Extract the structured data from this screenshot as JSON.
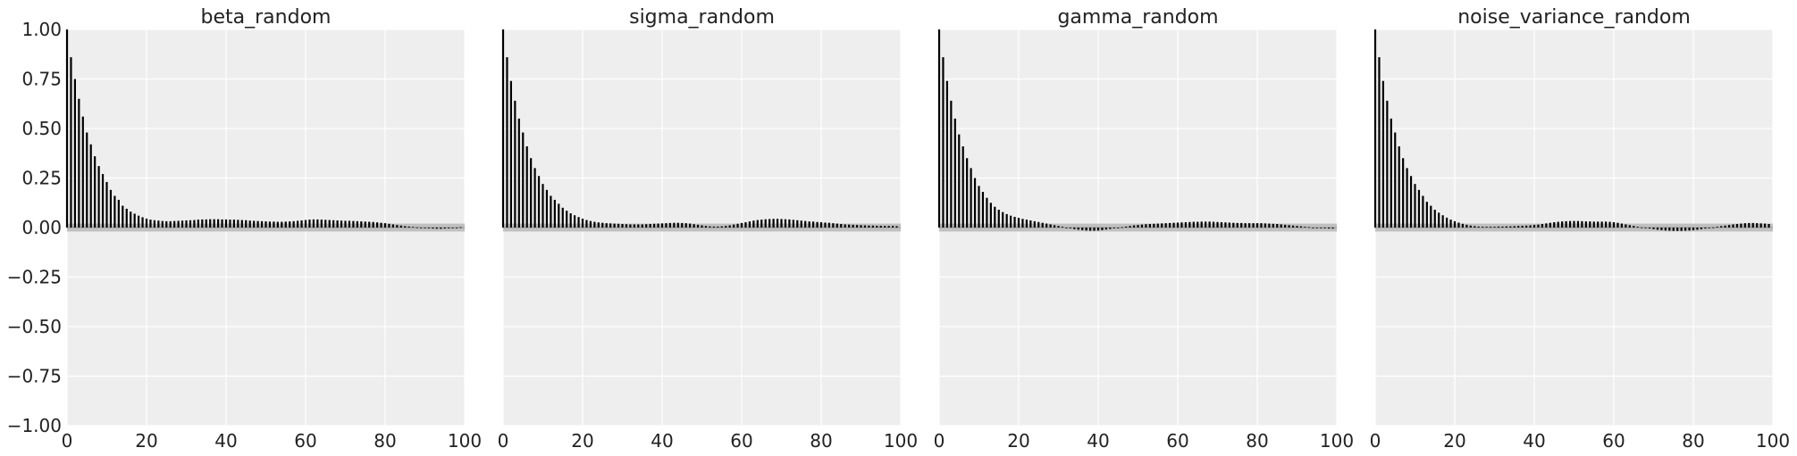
{
  "figure": {
    "background": "#ffffff",
    "panel_background": "#eeeeee",
    "grid_color": "#ffffff",
    "bar_color": "#000000",
    "band_color": "#c0c0c0"
  },
  "chart_data": [
    {
      "type": "bar",
      "title": "beta_random",
      "xlim": [
        0,
        100
      ],
      "ylim": [
        -1.0,
        1.0
      ],
      "xticks": [
        "0",
        "20",
        "40",
        "60",
        "80",
        "100"
      ],
      "yticks": [
        "1.00",
        "0.75",
        "0.50",
        "0.25",
        "0.00",
        "−0.25",
        "−0.50",
        "−0.75",
        "−1.00"
      ],
      "grid": true,
      "x": [
        0,
        1,
        2,
        3,
        4,
        5,
        6,
        7,
        8,
        9,
        10,
        11,
        12,
        13,
        14,
        15,
        16,
        17,
        18,
        19,
        20,
        21,
        22,
        23,
        24,
        25,
        26,
        27,
        28,
        29,
        30,
        31,
        32,
        33,
        34,
        35,
        36,
        37,
        38,
        39,
        40,
        41,
        42,
        43,
        44,
        45,
        46,
        47,
        48,
        49,
        50,
        51,
        52,
        53,
        54,
        55,
        56,
        57,
        58,
        59,
        60,
        61,
        62,
        63,
        64,
        65,
        66,
        67,
        68,
        69,
        70,
        71,
        72,
        73,
        74,
        75,
        76,
        77,
        78,
        79,
        80,
        81,
        82,
        83,
        84,
        85,
        86,
        87,
        88,
        89,
        90,
        91,
        92,
        93,
        94,
        95,
        96,
        97,
        98,
        99
      ],
      "values": [
        1.0,
        0.86,
        0.75,
        0.65,
        0.56,
        0.48,
        0.42,
        0.36,
        0.31,
        0.27,
        0.23,
        0.19,
        0.16,
        0.14,
        0.11,
        0.095,
        0.08,
        0.07,
        0.06,
        0.052,
        0.045,
        0.04,
        0.037,
        0.035,
        0.033,
        0.032,
        0.032,
        0.033,
        0.034,
        0.035,
        0.036,
        0.037,
        0.038,
        0.04,
        0.041,
        0.041,
        0.042,
        0.042,
        0.042,
        0.041,
        0.041,
        0.04,
        0.04,
        0.039,
        0.038,
        0.037,
        0.035,
        0.034,
        0.033,
        0.032,
        0.031,
        0.03,
        0.03,
        0.029,
        0.029,
        0.03,
        0.031,
        0.032,
        0.034,
        0.036,
        0.038,
        0.04,
        0.041,
        0.041,
        0.04,
        0.039,
        0.038,
        0.037,
        0.036,
        0.035,
        0.034,
        0.034,
        0.033,
        0.032,
        0.031,
        0.03,
        0.029,
        0.028,
        0.026,
        0.024,
        0.022,
        0.019,
        0.016,
        0.013,
        0.01,
        0.007,
        0.005,
        0.003,
        0.001,
        0.0,
        -0.003,
        -0.004,
        -0.005,
        -0.006,
        -0.006,
        -0.005,
        -0.004,
        -0.003,
        0.0,
        0.002
      ]
    },
    {
      "type": "bar",
      "title": "sigma_random",
      "xlim": [
        0,
        100
      ],
      "ylim": [
        -1.0,
        1.0
      ],
      "xticks": [
        "0",
        "20",
        "40",
        "60",
        "80",
        "100"
      ],
      "yticks": [],
      "grid": true,
      "x": [
        0,
        1,
        2,
        3,
        4,
        5,
        6,
        7,
        8,
        9,
        10,
        11,
        12,
        13,
        14,
        15,
        16,
        17,
        18,
        19,
        20,
        21,
        22,
        23,
        24,
        25,
        26,
        27,
        28,
        29,
        30,
        31,
        32,
        33,
        34,
        35,
        36,
        37,
        38,
        39,
        40,
        41,
        42,
        43,
        44,
        45,
        46,
        47,
        48,
        49,
        50,
        51,
        52,
        53,
        54,
        55,
        56,
        57,
        58,
        59,
        60,
        61,
        62,
        63,
        64,
        65,
        66,
        67,
        68,
        69,
        70,
        71,
        72,
        73,
        74,
        75,
        76,
        77,
        78,
        79,
        80,
        81,
        82,
        83,
        84,
        85,
        86,
        87,
        88,
        89,
        90,
        91,
        92,
        93,
        94,
        95,
        96,
        97,
        98,
        99
      ],
      "values": [
        1.0,
        0.86,
        0.74,
        0.64,
        0.55,
        0.48,
        0.41,
        0.35,
        0.3,
        0.26,
        0.22,
        0.19,
        0.16,
        0.14,
        0.12,
        0.1,
        0.085,
        0.072,
        0.062,
        0.053,
        0.045,
        0.038,
        0.033,
        0.029,
        0.026,
        0.024,
        0.022,
        0.021,
        0.02,
        0.019,
        0.018,
        0.017,
        0.016,
        0.016,
        0.016,
        0.016,
        0.017,
        0.018,
        0.019,
        0.02,
        0.021,
        0.022,
        0.023,
        0.024,
        0.024,
        0.023,
        0.022,
        0.02,
        0.017,
        0.014,
        0.011,
        0.008,
        0.006,
        0.005,
        0.005,
        0.006,
        0.008,
        0.011,
        0.015,
        0.019,
        0.023,
        0.027,
        0.031,
        0.035,
        0.038,
        0.04,
        0.042,
        0.043,
        0.044,
        0.044,
        0.043,
        0.042,
        0.041,
        0.039,
        0.037,
        0.035,
        0.033,
        0.031,
        0.03,
        0.028,
        0.027,
        0.025,
        0.024,
        0.022,
        0.02,
        0.018,
        0.016,
        0.015,
        0.014,
        0.013,
        0.012,
        0.011,
        0.01,
        0.01,
        0.009,
        0.009,
        0.008,
        0.008,
        0.008,
        0.007
      ]
    },
    {
      "type": "bar",
      "title": "gamma_random",
      "xlim": [
        0,
        100
      ],
      "ylim": [
        -1.0,
        1.0
      ],
      "xticks": [
        "0",
        "20",
        "40",
        "60",
        "80",
        "100"
      ],
      "yticks": [],
      "grid": true,
      "x": [
        0,
        1,
        2,
        3,
        4,
        5,
        6,
        7,
        8,
        9,
        10,
        11,
        12,
        13,
        14,
        15,
        16,
        17,
        18,
        19,
        20,
        21,
        22,
        23,
        24,
        25,
        26,
        27,
        28,
        29,
        30,
        31,
        32,
        33,
        34,
        35,
        36,
        37,
        38,
        39,
        40,
        41,
        42,
        43,
        44,
        45,
        46,
        47,
        48,
        49,
        50,
        51,
        52,
        53,
        54,
        55,
        56,
        57,
        58,
        59,
        60,
        61,
        62,
        63,
        64,
        65,
        66,
        67,
        68,
        69,
        70,
        71,
        72,
        73,
        74,
        75,
        76,
        77,
        78,
        79,
        80,
        81,
        82,
        83,
        84,
        85,
        86,
        87,
        88,
        89,
        90,
        91,
        92,
        93,
        94,
        95,
        96,
        97,
        98,
        99
      ],
      "values": [
        1.0,
        0.86,
        0.74,
        0.64,
        0.55,
        0.47,
        0.41,
        0.35,
        0.3,
        0.25,
        0.21,
        0.18,
        0.15,
        0.125,
        0.105,
        0.09,
        0.078,
        0.068,
        0.06,
        0.054,
        0.049,
        0.044,
        0.04,
        0.036,
        0.032,
        0.028,
        0.024,
        0.02,
        0.016,
        0.012,
        0.008,
        0.004,
        0.0,
        -0.004,
        -0.008,
        -0.011,
        -0.013,
        -0.015,
        -0.016,
        -0.016,
        -0.015,
        -0.013,
        -0.01,
        -0.007,
        -0.004,
        -0.001,
        0.002,
        0.005,
        0.008,
        0.011,
        0.013,
        0.015,
        0.017,
        0.018,
        0.019,
        0.02,
        0.021,
        0.022,
        0.023,
        0.024,
        0.025,
        0.026,
        0.027,
        0.028,
        0.029,
        0.029,
        0.03,
        0.03,
        0.03,
        0.029,
        0.028,
        0.027,
        0.026,
        0.025,
        0.024,
        0.023,
        0.023,
        0.022,
        0.022,
        0.022,
        0.022,
        0.022,
        0.021,
        0.02,
        0.019,
        0.018,
        0.016,
        0.014,
        0.012,
        0.01,
        0.008,
        0.006,
        0.004,
        0.002,
        0.0,
        -0.002,
        -0.003,
        -0.004,
        -0.005,
        -0.005
      ]
    },
    {
      "type": "bar",
      "title": "noise_variance_random",
      "xlim": [
        0,
        100
      ],
      "ylim": [
        -1.0,
        1.0
      ],
      "xticks": [
        "0",
        "20",
        "40",
        "60",
        "80",
        "100"
      ],
      "yticks": [],
      "grid": true,
      "x": [
        0,
        1,
        2,
        3,
        4,
        5,
        6,
        7,
        8,
        9,
        10,
        11,
        12,
        13,
        14,
        15,
        16,
        17,
        18,
        19,
        20,
        21,
        22,
        23,
        24,
        25,
        26,
        27,
        28,
        29,
        30,
        31,
        32,
        33,
        34,
        35,
        36,
        37,
        38,
        39,
        40,
        41,
        42,
        43,
        44,
        45,
        46,
        47,
        48,
        49,
        50,
        51,
        52,
        53,
        54,
        55,
        56,
        57,
        58,
        59,
        60,
        61,
        62,
        63,
        64,
        65,
        66,
        67,
        68,
        69,
        70,
        71,
        72,
        73,
        74,
        75,
        76,
        77,
        78,
        79,
        80,
        81,
        82,
        83,
        84,
        85,
        86,
        87,
        88,
        89,
        90,
        91,
        92,
        93,
        94,
        95,
        96,
        97,
        98,
        99
      ],
      "values": [
        1.0,
        0.86,
        0.74,
        0.64,
        0.55,
        0.48,
        0.41,
        0.35,
        0.3,
        0.26,
        0.22,
        0.19,
        0.16,
        0.13,
        0.11,
        0.09,
        0.075,
        0.062,
        0.05,
        0.04,
        0.032,
        0.025,
        0.019,
        0.014,
        0.01,
        0.007,
        0.005,
        0.004,
        0.004,
        0.004,
        0.004,
        0.005,
        0.005,
        0.006,
        0.006,
        0.007,
        0.008,
        0.009,
        0.01,
        0.011,
        0.013,
        0.015,
        0.018,
        0.021,
        0.024,
        0.027,
        0.029,
        0.031,
        0.032,
        0.033,
        0.033,
        0.033,
        0.032,
        0.031,
        0.031,
        0.03,
        0.03,
        0.03,
        0.03,
        0.029,
        0.027,
        0.024,
        0.02,
        0.016,
        0.012,
        0.008,
        0.004,
        0.001,
        -0.002,
        -0.005,
        -0.008,
        -0.011,
        -0.013,
        -0.015,
        -0.016,
        -0.017,
        -0.017,
        -0.017,
        -0.016,
        -0.015,
        -0.013,
        -0.011,
        -0.008,
        -0.005,
        -0.002,
        0.001,
        0.004,
        0.007,
        0.01,
        0.013,
        0.016,
        0.018,
        0.02,
        0.022,
        0.023,
        0.023,
        0.022,
        0.021,
        0.02,
        0.018
      ]
    }
  ]
}
